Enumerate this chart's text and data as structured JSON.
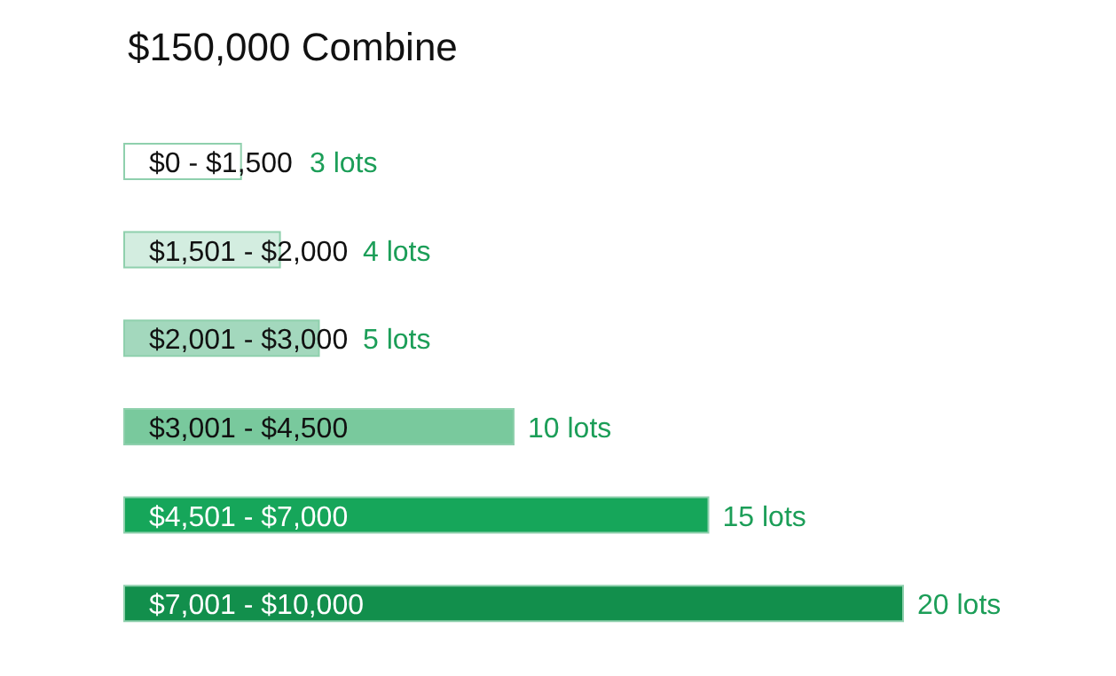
{
  "chart_data": {
    "type": "bar",
    "orientation": "horizontal",
    "title": "$150,000 Combine",
    "categories": [
      "$0 - $1,500",
      "$1,501 - $2,000",
      "$2,001 - $3,000",
      "$3,001 - $4,500",
      "$4,501 - $7,000",
      "$7,001 - $10,000"
    ],
    "values": [
      3,
      4,
      5,
      10,
      15,
      20
    ],
    "value_labels": [
      "3 lots",
      "4 lots",
      "5 lots",
      "10 lots",
      "15 lots",
      "20 lots"
    ],
    "colors": [
      "#ffffff",
      "#d3ede0",
      "#a3d8bd",
      "#79c99d",
      "#16a65a",
      "#128f4c"
    ],
    "grid": false
  }
}
